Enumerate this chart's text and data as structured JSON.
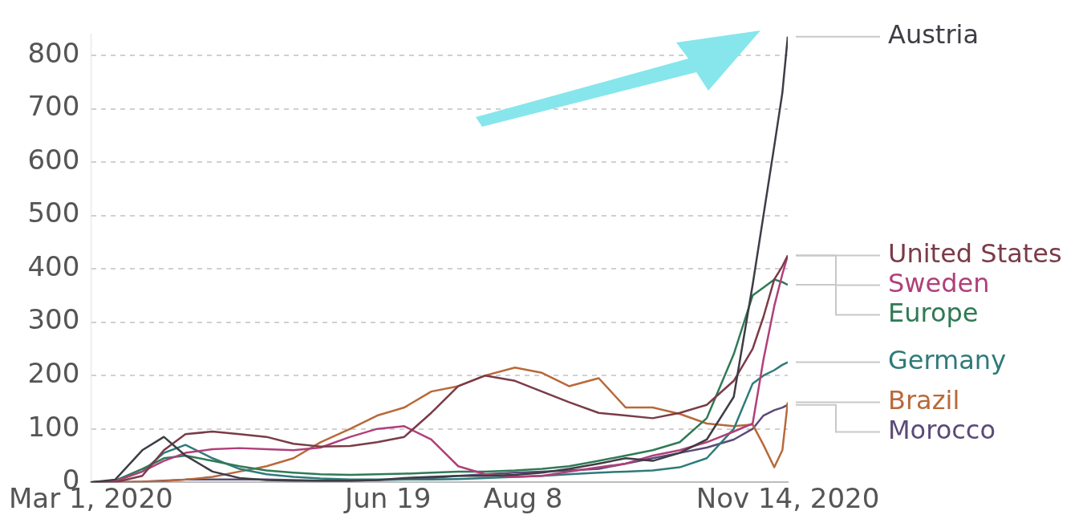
{
  "chart_data": {
    "type": "line",
    "x": [
      "2020-03-01",
      "2020-03-10",
      "2020-03-20",
      "2020-03-28",
      "2020-04-05",
      "2020-04-15",
      "2020-04-25",
      "2020-05-05",
      "2020-05-15",
      "2020-05-25",
      "2020-06-05",
      "2020-06-15",
      "2020-06-25",
      "2020-07-05",
      "2020-07-15",
      "2020-07-25",
      "2020-08-05",
      "2020-08-15",
      "2020-08-25",
      "2020-09-05",
      "2020-09-15",
      "2020-09-25",
      "2020-10-05",
      "2020-10-15",
      "2020-10-25",
      "2020-11-01",
      "2020-11-05",
      "2020-11-09",
      "2020-11-12",
      "2020-11-14"
    ],
    "series": [
      {
        "name": "Austria",
        "color": "#3d3d45",
        "values": [
          0,
          5,
          60,
          85,
          50,
          20,
          8,
          4,
          3,
          3,
          3,
          4,
          8,
          10,
          12,
          12,
          14,
          18,
          25,
          35,
          45,
          40,
          55,
          80,
          160,
          370,
          500,
          630,
          730,
          835
        ]
      },
      {
        "name": "United States",
        "color": "#7a3b48",
        "values": [
          0,
          0,
          12,
          60,
          90,
          95,
          90,
          85,
          72,
          67,
          68,
          75,
          85,
          130,
          180,
          200,
          190,
          170,
          150,
          130,
          125,
          120,
          130,
          145,
          190,
          250,
          310,
          380,
          405,
          425
        ]
      },
      {
        "name": "Sweden",
        "color": "#b0407a",
        "values": [
          0,
          2,
          20,
          40,
          55,
          62,
          64,
          62,
          60,
          65,
          85,
          100,
          105,
          80,
          30,
          15,
          10,
          12,
          20,
          28,
          35,
          50,
          60,
          75,
          95,
          110,
          230,
          330,
          390,
          425
        ]
      },
      {
        "name": "Europe",
        "color": "#2f7a55",
        "values": [
          0,
          3,
          25,
          45,
          50,
          40,
          30,
          22,
          18,
          15,
          14,
          15,
          16,
          18,
          20,
          20,
          22,
          25,
          30,
          40,
          50,
          60,
          75,
          120,
          240,
          350,
          365,
          380,
          375,
          370
        ]
      },
      {
        "name": "Germany",
        "color": "#2f7a7a",
        "values": [
          0,
          2,
          20,
          55,
          70,
          45,
          25,
          15,
          10,
          7,
          5,
          5,
          5,
          5,
          6,
          8,
          10,
          12,
          15,
          18,
          20,
          22,
          28,
          45,
          100,
          185,
          200,
          210,
          220,
          225
        ]
      },
      {
        "name": "Brazil",
        "color": "#b8693a",
        "values": [
          0,
          0,
          1,
          2,
          5,
          10,
          20,
          30,
          45,
          75,
          100,
          125,
          140,
          170,
          180,
          200,
          215,
          205,
          180,
          195,
          140,
          140,
          128,
          110,
          105,
          108,
          70,
          28,
          60,
          150
        ]
      },
      {
        "name": "Morocco",
        "color": "#5c4a78",
        "values": [
          0,
          0,
          1,
          3,
          5,
          5,
          5,
          5,
          4,
          3,
          3,
          4,
          5,
          8,
          12,
          15,
          18,
          20,
          22,
          25,
          35,
          45,
          55,
          65,
          80,
          100,
          125,
          135,
          140,
          145
        ]
      }
    ],
    "xlim": [
      "2020-03-01",
      "2020-11-14"
    ],
    "xticks": [
      {
        "value": "2020-03-01",
        "label": "Mar 1, 2020"
      },
      {
        "value": "2020-06-19",
        "label": "Jun 19"
      },
      {
        "value": "2020-08-08",
        "label": "Aug 8"
      },
      {
        "value": "2020-11-14",
        "label": "Nov 14, 2020"
      }
    ],
    "ylim": [
      0,
      840
    ],
    "yticks": [
      0,
      100,
      200,
      300,
      400,
      500,
      600,
      700,
      800
    ],
    "grid": "y",
    "legend": false,
    "marker": "none",
    "line_style": "solid"
  }
}
